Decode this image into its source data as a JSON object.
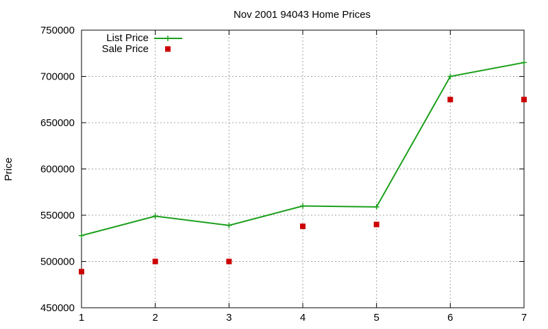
{
  "chart_data": {
    "type": "line",
    "title": "Nov 2001 94043 Home Prices",
    "xlabel": "",
    "ylabel": "Price",
    "x": [
      1,
      2,
      3,
      4,
      5,
      6,
      7
    ],
    "xlim": [
      1,
      7
    ],
    "ylim": [
      450000,
      750000
    ],
    "yticks": [
      450000,
      500000,
      550000,
      600000,
      650000,
      700000,
      750000
    ],
    "xticks": [
      1,
      2,
      3,
      4,
      5,
      6,
      7
    ],
    "grid": true,
    "legend_position": "top-left",
    "series": [
      {
        "name": "List Price",
        "style": "linespoints",
        "marker": "plus",
        "color": "#1a9f1a",
        "values": [
          528000,
          549000,
          539000,
          560000,
          559000,
          700000,
          715000
        ]
      },
      {
        "name": "Sale Price",
        "style": "points",
        "marker": "square",
        "color": "#cc0000",
        "values": [
          489000,
          500000,
          500000,
          538000,
          540000,
          675000,
          675000
        ]
      }
    ]
  }
}
